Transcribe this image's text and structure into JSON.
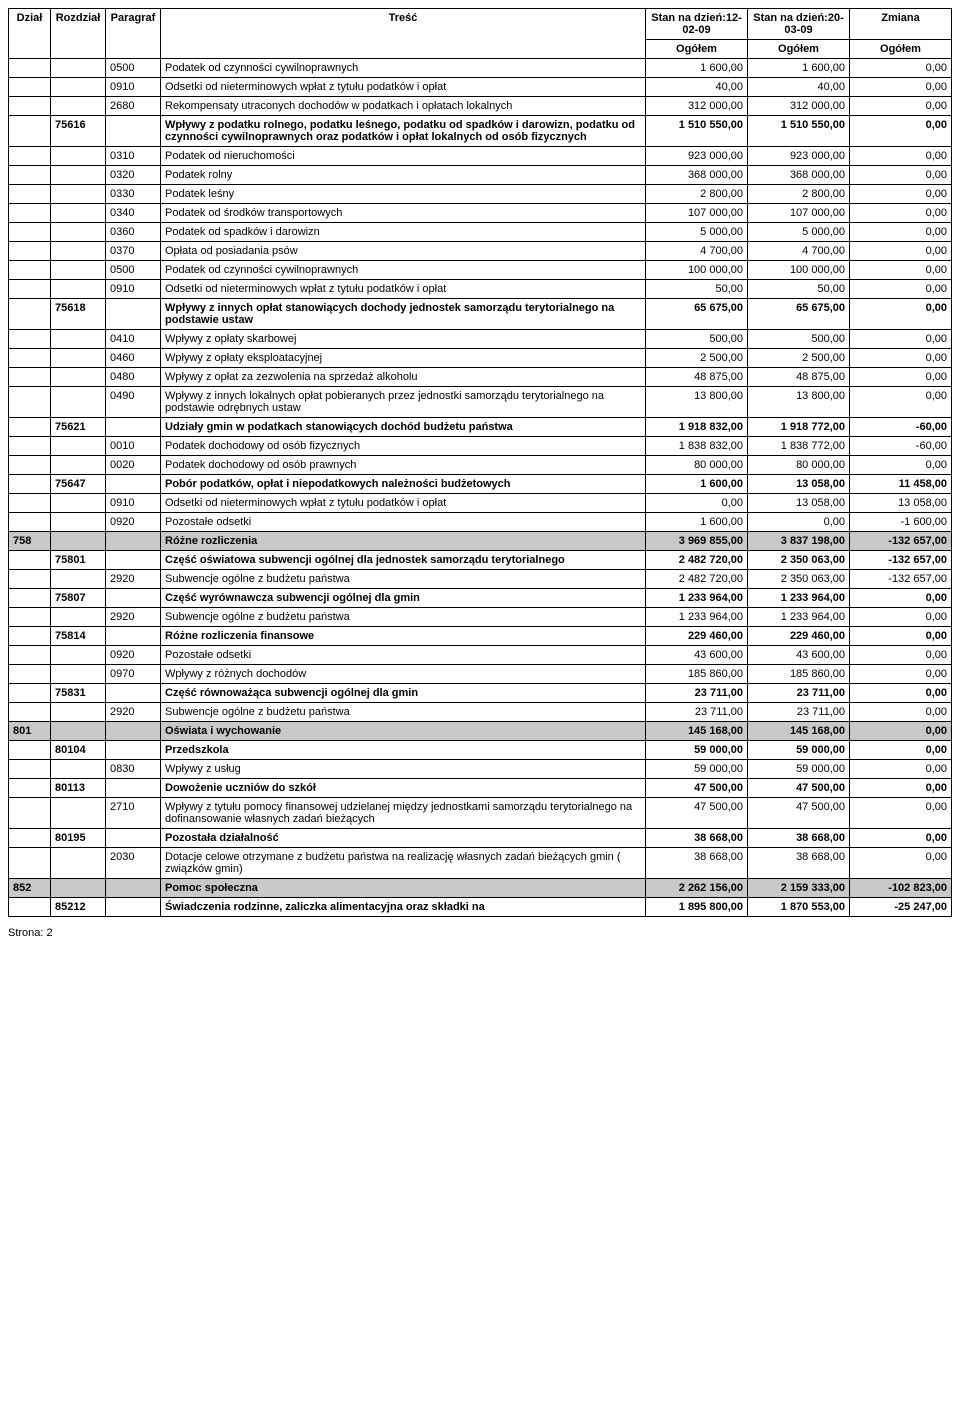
{
  "headers": {
    "dzial": "Dział",
    "rozdzial": "Rozdział",
    "paragraf": "Paragraf",
    "tresc": "Treść",
    "stan1": "Stan na dzień:12-02-09",
    "stan2": "Stan na dzień:20-03-09",
    "zmiana": "Zmiana",
    "ogolem": "Ogółem"
  },
  "footer": "Strona:  2",
  "rows": [
    {
      "dzial": "",
      "rozdzial": "",
      "paragraf": "0500",
      "tresc": "Podatek od czynności cywilnoprawnych",
      "v1": "1 600,00",
      "v2": "1 600,00",
      "v3": "0,00"
    },
    {
      "dzial": "",
      "rozdzial": "",
      "paragraf": "0910",
      "tresc": "Odsetki od nieterminowych wpłat z tytułu podatków i opłat",
      "v1": "40,00",
      "v2": "40,00",
      "v3": "0,00"
    },
    {
      "dzial": "",
      "rozdzial": "",
      "paragraf": "2680",
      "tresc": "Rekompensaty utraconych dochodów w podatkach i opłatach lokalnych",
      "v1": "312 000,00",
      "v2": "312 000,00",
      "v3": "0,00"
    },
    {
      "bold": true,
      "dzial": "",
      "rozdzial": "75616",
      "paragraf": "",
      "tresc": "Wpływy z podatku rolnego, podatku leśnego, podatku od spadków i darowizn, podatku od czynności cywilnoprawnych oraz podatków i opłat lokalnych od osób fizycznych",
      "v1": "1 510 550,00",
      "v2": "1 510 550,00",
      "v3": "0,00"
    },
    {
      "dzial": "",
      "rozdzial": "",
      "paragraf": "0310",
      "tresc": "Podatek od nieruchomości",
      "v1": "923 000,00",
      "v2": "923 000,00",
      "v3": "0,00"
    },
    {
      "dzial": "",
      "rozdzial": "",
      "paragraf": "0320",
      "tresc": "Podatek rolny",
      "v1": "368 000,00",
      "v2": "368 000,00",
      "v3": "0,00"
    },
    {
      "dzial": "",
      "rozdzial": "",
      "paragraf": "0330",
      "tresc": "Podatek leśny",
      "v1": "2 800,00",
      "v2": "2 800,00",
      "v3": "0,00"
    },
    {
      "dzial": "",
      "rozdzial": "",
      "paragraf": "0340",
      "tresc": "Podatek od środków transportowych",
      "v1": "107 000,00",
      "v2": "107 000,00",
      "v3": "0,00"
    },
    {
      "dzial": "",
      "rozdzial": "",
      "paragraf": "0360",
      "tresc": "Podatek od spadków i darowizn",
      "v1": "5 000,00",
      "v2": "5 000,00",
      "v3": "0,00"
    },
    {
      "dzial": "",
      "rozdzial": "",
      "paragraf": "0370",
      "tresc": "Opłata od posiadania psów",
      "v1": "4 700,00",
      "v2": "4 700,00",
      "v3": "0,00"
    },
    {
      "dzial": "",
      "rozdzial": "",
      "paragraf": "0500",
      "tresc": "Podatek od czynności cywilnoprawnych",
      "v1": "100 000,00",
      "v2": "100 000,00",
      "v3": "0,00"
    },
    {
      "dzial": "",
      "rozdzial": "",
      "paragraf": "0910",
      "tresc": "Odsetki od nieterminowych wpłat z tytułu podatków i opłat",
      "v1": "50,00",
      "v2": "50,00",
      "v3": "0,00"
    },
    {
      "bold": true,
      "dzial": "",
      "rozdzial": "75618",
      "paragraf": "",
      "tresc": "Wpływy z innych opłat stanowiących dochody jednostek samorządu terytorialnego na podstawie ustaw",
      "v1": "65 675,00",
      "v2": "65 675,00",
      "v3": "0,00"
    },
    {
      "dzial": "",
      "rozdzial": "",
      "paragraf": "0410",
      "tresc": "Wpływy z opłaty skarbowej",
      "v1": "500,00",
      "v2": "500,00",
      "v3": "0,00"
    },
    {
      "dzial": "",
      "rozdzial": "",
      "paragraf": "0460",
      "tresc": "Wpływy z opłaty eksploatacyjnej",
      "v1": "2 500,00",
      "v2": "2 500,00",
      "v3": "0,00"
    },
    {
      "dzial": "",
      "rozdzial": "",
      "paragraf": "0480",
      "tresc": "Wpływy  z opłat za zezwolenia na sprzedaż alkoholu",
      "v1": "48 875,00",
      "v2": "48 875,00",
      "v3": "0,00"
    },
    {
      "dzial": "",
      "rozdzial": "",
      "paragraf": "0490",
      "tresc": "Wpływy z innych lokalnych opłat pobieranych przez jednostki samorządu terytorialnego na podstawie odrębnych ustaw",
      "v1": "13 800,00",
      "v2": "13 800,00",
      "v3": "0,00"
    },
    {
      "bold": true,
      "dzial": "",
      "rozdzial": "75621",
      "paragraf": "",
      "tresc": "Udziały gmin w podatkach stanowiących dochód budżetu państwa",
      "v1": "1 918 832,00",
      "v2": "1 918 772,00",
      "v3": "-60,00"
    },
    {
      "dzial": "",
      "rozdzial": "",
      "paragraf": "0010",
      "tresc": "Podatek dochodowy od osób fizycznych",
      "v1": "1 838 832,00",
      "v2": "1 838 772,00",
      "v3": "-60,00"
    },
    {
      "dzial": "",
      "rozdzial": "",
      "paragraf": "0020",
      "tresc": "Podatek dochodowy od osób prawnych",
      "v1": "80 000,00",
      "v2": "80 000,00",
      "v3": "0,00"
    },
    {
      "bold": true,
      "dzial": "",
      "rozdzial": "75647",
      "paragraf": "",
      "tresc": "Pobór podatków, opłat i niepodatkowych należności budżetowych",
      "v1": "1 600,00",
      "v2": "13 058,00",
      "v3": "11 458,00"
    },
    {
      "dzial": "",
      "rozdzial": "",
      "paragraf": "0910",
      "tresc": "Odsetki od nieterminowych wpłat z tytułu podatków i opłat",
      "v1": "0,00",
      "v2": "13 058,00",
      "v3": "13 058,00"
    },
    {
      "dzial": "",
      "rozdzial": "",
      "paragraf": "0920",
      "tresc": "Pozostałe odsetki",
      "v1": "1 600,00",
      "v2": "0,00",
      "v3": "-1 600,00"
    },
    {
      "shade": true,
      "dzial": "758",
      "rozdzial": "",
      "paragraf": "",
      "tresc": "Różne rozliczenia",
      "v1": "3 969 855,00",
      "v2": "3 837 198,00",
      "v3": "-132 657,00"
    },
    {
      "bold": true,
      "dzial": "",
      "rozdzial": "75801",
      "paragraf": "",
      "tresc": "Część oświatowa subwencji ogólnej dla jednostek samorządu terytorialnego",
      "v1": "2 482 720,00",
      "v2": "2 350 063,00",
      "v3": "-132 657,00"
    },
    {
      "dzial": "",
      "rozdzial": "",
      "paragraf": "2920",
      "tresc": "Subwencje ogólne z budżetu państwa",
      "v1": "2 482 720,00",
      "v2": "2 350 063,00",
      "v3": "-132 657,00"
    },
    {
      "bold": true,
      "dzial": "",
      "rozdzial": "75807",
      "paragraf": "",
      "tresc": "Część wyrównawcza subwencji ogólnej dla gmin",
      "v1": "1 233 964,00",
      "v2": "1 233 964,00",
      "v3": "0,00"
    },
    {
      "dzial": "",
      "rozdzial": "",
      "paragraf": "2920",
      "tresc": "Subwencje ogólne z budżetu państwa",
      "v1": "1 233 964,00",
      "v2": "1 233 964,00",
      "v3": "0,00"
    },
    {
      "bold": true,
      "dzial": "",
      "rozdzial": "75814",
      "paragraf": "",
      "tresc": "Różne rozliczenia finansowe",
      "v1": "229 460,00",
      "v2": "229 460,00",
      "v3": "0,00"
    },
    {
      "dzial": "",
      "rozdzial": "",
      "paragraf": "0920",
      "tresc": "Pozostałe odsetki",
      "v1": "43 600,00",
      "v2": "43 600,00",
      "v3": "0,00"
    },
    {
      "dzial": "",
      "rozdzial": "",
      "paragraf": "0970",
      "tresc": "Wpływy z różnych dochodów",
      "v1": "185 860,00",
      "v2": "185 860,00",
      "v3": "0,00"
    },
    {
      "bold": true,
      "dzial": "",
      "rozdzial": "75831",
      "paragraf": "",
      "tresc": "Część równoważąca subwencji ogólnej dla gmin",
      "v1": "23 711,00",
      "v2": "23 711,00",
      "v3": "0,00"
    },
    {
      "dzial": "",
      "rozdzial": "",
      "paragraf": "2920",
      "tresc": "Subwencje ogólne z budżetu państwa",
      "v1": "23 711,00",
      "v2": "23 711,00",
      "v3": "0,00"
    },
    {
      "shade": true,
      "dzial": "801",
      "rozdzial": "",
      "paragraf": "",
      "tresc": "Oświata i wychowanie",
      "v1": "145 168,00",
      "v2": "145 168,00",
      "v3": "0,00"
    },
    {
      "bold": true,
      "dzial": "",
      "rozdzial": "80104",
      "paragraf": "",
      "tresc": "Przedszkola",
      "v1": "59 000,00",
      "v2": "59 000,00",
      "v3": "0,00"
    },
    {
      "dzial": "",
      "rozdzial": "",
      "paragraf": "0830",
      "tresc": "Wpływy z usług",
      "v1": "59 000,00",
      "v2": "59 000,00",
      "v3": "0,00"
    },
    {
      "bold": true,
      "dzial": "",
      "rozdzial": "80113",
      "paragraf": "",
      "tresc": "Dowożenie uczniów do szkół",
      "v1": "47 500,00",
      "v2": "47 500,00",
      "v3": "0,00"
    },
    {
      "dzial": "",
      "rozdzial": "",
      "paragraf": "2710",
      "tresc": "Wpływy z tytułu pomocy finansowej udzielanej między jednostkami samorządu terytorialnego na dofinansowanie własnych zadań bieżących",
      "v1": "47 500,00",
      "v2": "47 500,00",
      "v3": "0,00"
    },
    {
      "bold": true,
      "dzial": "",
      "rozdzial": "80195",
      "paragraf": "",
      "tresc": "Pozostała działalność",
      "v1": "38 668,00",
      "v2": "38 668,00",
      "v3": "0,00"
    },
    {
      "dzial": "",
      "rozdzial": "",
      "paragraf": "2030",
      "tresc": "Dotacje celowe otrzymane z budżetu państwa na realizację własnych zadań bieżących gmin ( związków gmin)",
      "v1": "38 668,00",
      "v2": "38 668,00",
      "v3": "0,00"
    },
    {
      "shade": true,
      "dzial": "852",
      "rozdzial": "",
      "paragraf": "",
      "tresc": "Pomoc społeczna",
      "v1": "2 262 156,00",
      "v2": "2 159 333,00",
      "v3": "-102 823,00"
    },
    {
      "bold": true,
      "dzial": "",
      "rozdzial": "85212",
      "paragraf": "",
      "tresc": "Świadczenia rodzinne, zaliczka alimentacyjna oraz składki na",
      "v1": "1 895 800,00",
      "v2": "1 870 553,00",
      "v3": "-25 247,00"
    }
  ]
}
